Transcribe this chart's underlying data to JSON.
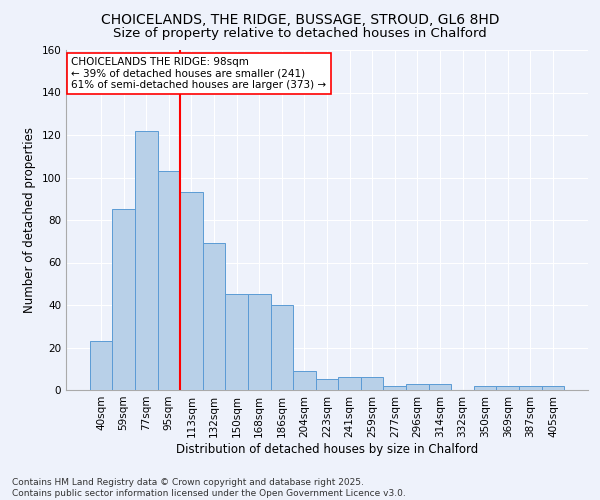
{
  "title": "CHOICELANDS, THE RIDGE, BUSSAGE, STROUD, GL6 8HD",
  "subtitle": "Size of property relative to detached houses in Chalford",
  "xlabel": "Distribution of detached houses by size in Chalford",
  "ylabel": "Number of detached properties",
  "categories": [
    "40sqm",
    "59sqm",
    "77sqm",
    "95sqm",
    "113sqm",
    "132sqm",
    "150sqm",
    "168sqm",
    "186sqm",
    "204sqm",
    "223sqm",
    "241sqm",
    "259sqm",
    "277sqm",
    "296sqm",
    "314sqm",
    "332sqm",
    "350sqm",
    "369sqm",
    "387sqm",
    "405sqm"
  ],
  "values": [
    23,
    85,
    122,
    103,
    93,
    69,
    45,
    45,
    40,
    9,
    5,
    6,
    6,
    2,
    3,
    3,
    0,
    2,
    2,
    2,
    2
  ],
  "bar_color": "#b8d0e8",
  "bar_edge_color": "#5b9bd5",
  "vline_color": "red",
  "vline_index": 3.5,
  "annotation_text": "CHOICELANDS THE RIDGE: 98sqm\n← 39% of detached houses are smaller (241)\n61% of semi-detached houses are larger (373) →",
  "annotation_box_color": "white",
  "annotation_box_edge": "red",
  "ylim": [
    0,
    160
  ],
  "yticks": [
    0,
    20,
    40,
    60,
    80,
    100,
    120,
    140,
    160
  ],
  "footer": "Contains HM Land Registry data © Crown copyright and database right 2025.\nContains public sector information licensed under the Open Government Licence v3.0.",
  "background_color": "#eef2fb",
  "grid_color": "#ffffff",
  "title_fontsize": 10,
  "subtitle_fontsize": 9.5,
  "axis_label_fontsize": 8.5,
  "tick_fontsize": 7.5,
  "annotation_fontsize": 7.5,
  "footer_fontsize": 6.5
}
